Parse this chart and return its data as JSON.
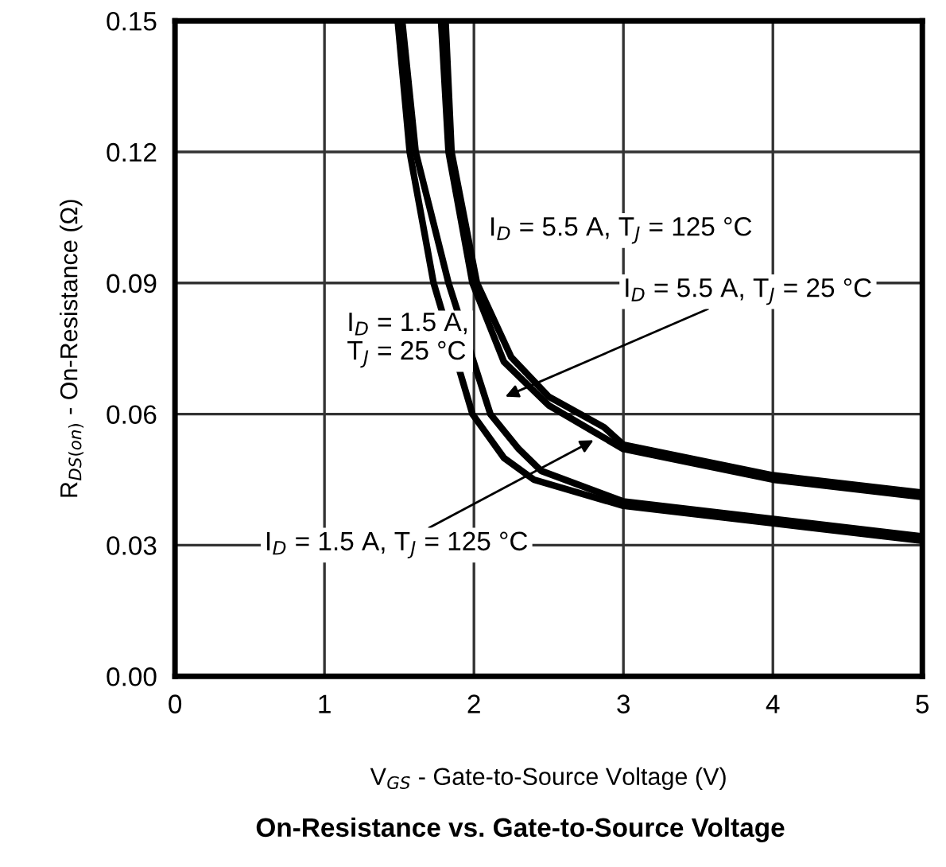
{
  "chart_data": {
    "type": "line",
    "title": "On-Resistance vs. Gate-to-Source Voltage",
    "xlabel": "V$_{GS}$ - Gate-to-Source Voltage (V)",
    "ylabel": "R$_{DS(on)}$ - On-Resistance (Ω)",
    "xlim": [
      0,
      5
    ],
    "ylim": [
      0,
      0.15
    ],
    "xticks": [
      0,
      1,
      2,
      3,
      4,
      5
    ],
    "yticks": [
      {
        "value": 0,
        "label": "0.00"
      },
      {
        "value": 0.03,
        "label": "0.03"
      },
      {
        "value": 0.06,
        "label": "0.06"
      },
      {
        "value": 0.09,
        "label": "0.09"
      },
      {
        "value": 0.12,
        "label": "0.12"
      },
      {
        "value": 0.15,
        "label": "0.15"
      }
    ],
    "grid": true,
    "marker": "none",
    "line_style": "solid",
    "series": [
      {
        "color": "#000000",
        "x": [
          1.49,
          1.57,
          1.73,
          1.99,
          2.2,
          2.4,
          3,
          4,
          5
        ],
        "values": [
          0.15,
          0.12,
          0.09,
          0.06,
          0.05,
          0.045,
          0.039,
          0.035,
          0.031
        ]
      },
      {
        "color": "#000000",
        "x": [
          1.52,
          1.61,
          1.83,
          2.11,
          2.3,
          2.45,
          3,
          4,
          5
        ],
        "values": [
          0.15,
          0.12,
          0.09,
          0.06,
          0.052,
          0.047,
          0.04,
          0.036,
          0.032
        ]
      },
      {
        "color": "#000000",
        "x": [
          1.78,
          1.83,
          1.99,
          2.2,
          2.5,
          2.8,
          3,
          4,
          5
        ],
        "values": [
          0.15,
          0.12,
          0.09,
          0.072,
          0.062,
          0.056,
          0.052,
          0.045,
          0.041
        ]
      },
      {
        "color": "#000000",
        "x": [
          1.81,
          1.85,
          2.02,
          2.25,
          2.5,
          2.87,
          3,
          4,
          5
        ],
        "values": [
          0.15,
          0.12,
          0.09,
          0.073,
          0.064,
          0.057,
          0.053,
          0.046,
          0.042
        ]
      }
    ],
    "annotations": [
      "I$_{D}$ = 5.5 A, T$_{J}$ = 125 °C",
      "I$_{D}$ = 5.5 A, T$_{J}$ = 25 °C",
      "I$_{D}$ = 1.5 A,\nT$_{J}$ = 25 °C",
      {
        "text": "I$_{D}$ = 1.5 A, T$_{J}$ = 125 °C",
        "x": 2.8,
        "y": 0.054
      }
    ]
  }
}
